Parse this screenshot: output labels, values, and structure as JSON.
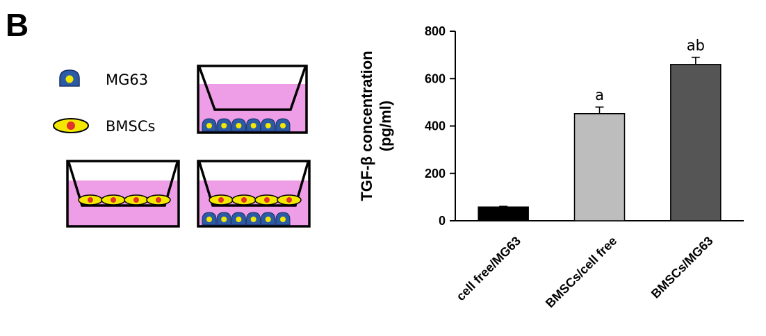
{
  "panel_label": "B",
  "legend": {
    "items": [
      {
        "label": "MG63",
        "icon": "mg63-cell-icon"
      },
      {
        "label": "BMSCs",
        "icon": "bmsc-cell-icon"
      }
    ]
  },
  "colors": {
    "medium": "#ee9ee6",
    "mg63_body": "#2b5ba5",
    "mg63_nucleus": "#f5e800",
    "bmsc_body": "#f5e800",
    "bmsc_nucleus": "#e3312c"
  },
  "chart_data": {
    "type": "bar",
    "categories": [
      "cell free/MG63",
      "BMSCs/cell free",
      "BMSCs/MG63"
    ],
    "values": [
      58,
      452,
      660
    ],
    "errors": [
      3,
      28,
      30
    ],
    "annotations": [
      "",
      "a",
      "ab"
    ],
    "bar_colors": [
      "#000000",
      "#bdbdbd",
      "#555555"
    ],
    "ylabel_line1": "TGF-β concentration",
    "ylabel_line2": "(pg/ml)",
    "ylim": [
      0,
      800
    ],
    "yticks": [
      0,
      200,
      400,
      600,
      800
    ],
    "grid": false
  }
}
